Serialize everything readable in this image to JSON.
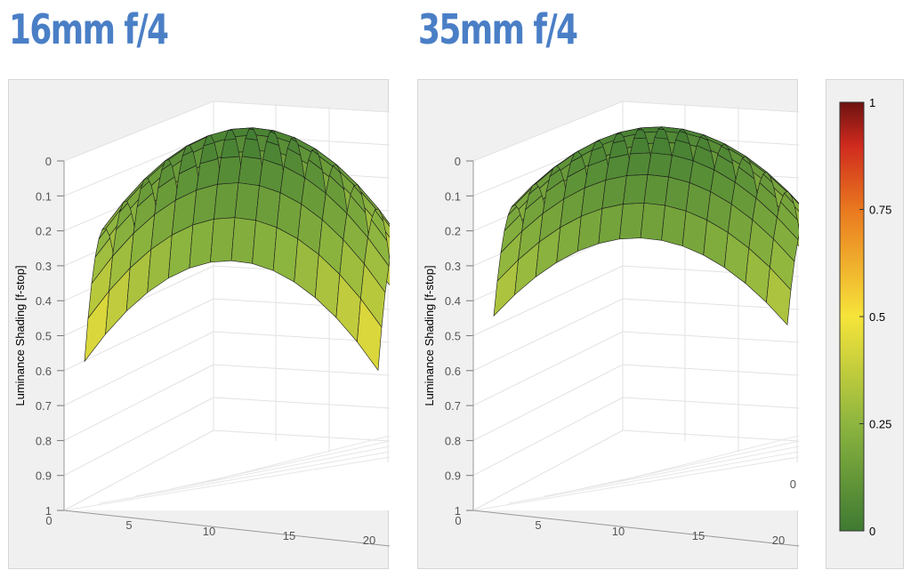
{
  "chart_data": [
    {
      "type": "surface",
      "title": "16mm f/4",
      "ylabel": "Luminance Shading [f-stop]",
      "zlim": [
        0,
        1
      ],
      "z_ticks": [
        "0",
        "0.1",
        "0.2",
        "0.3",
        "0.4",
        "0.5",
        "0.6",
        "0.7",
        "0.8",
        "0.9",
        "1"
      ],
      "x_ticks": [
        "0",
        "5",
        "10",
        "15",
        "20"
      ],
      "z_reversed": true,
      "max_shading": 0.5,
      "colormap": "green-yellow-red"
    },
    {
      "type": "surface",
      "title": "35mm f/4",
      "ylabel": "Luminance Shading [f-stop]",
      "zlim": [
        0,
        1
      ],
      "z_ticks": [
        "0",
        "0.1",
        "0.2",
        "0.3",
        "0.4",
        "0.5",
        "0.6",
        "0.7",
        "0.8",
        "0.9",
        "1"
      ],
      "x_ticks": [
        "0",
        "5",
        "10",
        "15",
        "20"
      ],
      "extra_tick": "0",
      "z_reversed": true,
      "max_shading": 0.37,
      "colormap": "green-yellow-red"
    }
  ],
  "colorbar": {
    "ticks": [
      "1",
      "0.75",
      "0.5",
      "0.25",
      "0"
    ],
    "values": [
      1,
      0.75,
      0.5,
      0.25,
      0
    ],
    "colors": [
      "#3e7a32",
      "#8db53f",
      "#f6e43a",
      "#e9781f",
      "#cf2a1e",
      "#6d1210"
    ]
  }
}
